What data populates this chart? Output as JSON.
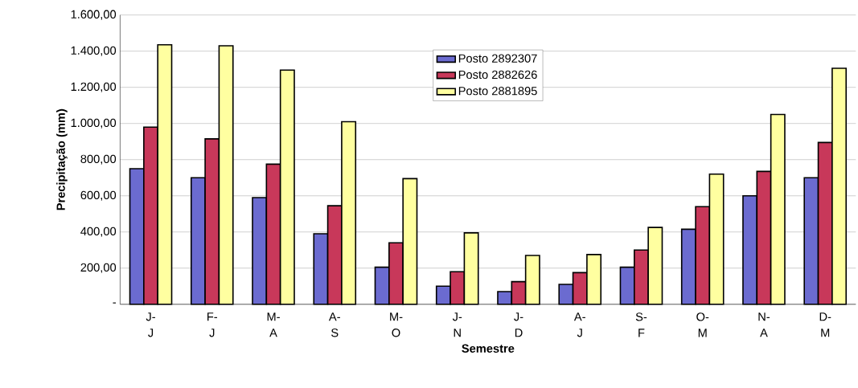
{
  "chart_data": {
    "type": "bar",
    "xlabel": "Semestre",
    "ylabel": "Precipitação (mm)",
    "categories": [
      "J- J",
      "F- J",
      "M- A",
      "A- S",
      "M- O",
      "J- N",
      "J- D",
      "A- J",
      "S- F",
      "O- M",
      "N- A",
      "D- M"
    ],
    "series": [
      {
        "name": "Posto 2892307",
        "color": "#6b6bd0",
        "values": [
          750,
          700,
          590,
          390,
          205,
          100,
          70,
          110,
          205,
          415,
          600,
          700
        ]
      },
      {
        "name": "Posto 2882626",
        "color": "#c8385a",
        "values": [
          980,
          915,
          775,
          545,
          340,
          180,
          125,
          175,
          300,
          540,
          735,
          895
        ]
      },
      {
        "name": "Posto 2881895",
        "color": "#ffffa0",
        "values": [
          1435,
          1430,
          1295,
          1010,
          695,
          395,
          270,
          275,
          425,
          720,
          1050,
          1305
        ]
      }
    ],
    "ylim": [
      0,
      1600
    ],
    "yticks": [
      {
        "value": 0,
        "label": "-"
      },
      {
        "value": 200,
        "label": "200,00"
      },
      {
        "value": 400,
        "label": "400,00"
      },
      {
        "value": 600,
        "label": "600,00"
      },
      {
        "value": 800,
        "label": "800,00"
      },
      {
        "value": 1000,
        "label": "1.000,00"
      },
      {
        "value": 1200,
        "label": "1.200,00"
      },
      {
        "value": 1400,
        "label": "1.400,00"
      },
      {
        "value": 1600,
        "label": "1.600,00"
      }
    ],
    "grid": "y",
    "legend": "top"
  }
}
